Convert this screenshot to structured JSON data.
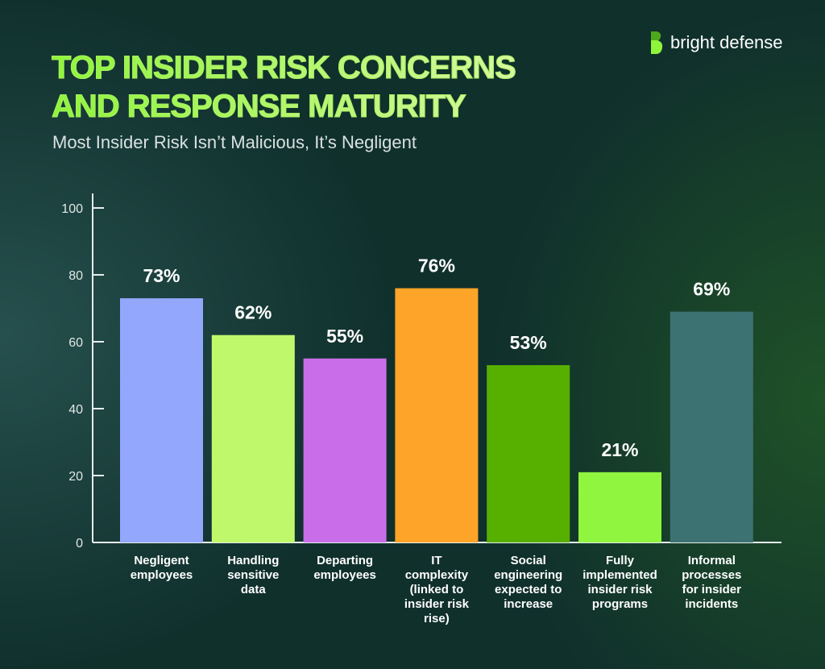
{
  "header": {
    "title_line1": "TOP INSIDER RISK CONCERNS",
    "title_line2": "AND RESPONSE MATURITY",
    "subtitle": "Most Insider Risk Isn’t Malicious, It’s Negligent"
  },
  "logo": {
    "text": "bright defense"
  },
  "chart_data": {
    "type": "bar",
    "ylim": [
      0,
      100
    ],
    "yticks": [
      "0",
      "20",
      "40",
      "60",
      "80",
      "100"
    ],
    "grid": false,
    "categories": [
      [
        "Negligent",
        "employees"
      ],
      [
        "Handling",
        "sensitive",
        "data"
      ],
      [
        "Departing",
        "employees"
      ],
      [
        "IT",
        "complexity",
        "(linked to",
        "insider risk",
        "rise)"
      ],
      [
        "Social",
        "engineering",
        "expected to",
        "increase"
      ],
      [
        "Fully",
        "implemented",
        "insider risk",
        "programs"
      ],
      [
        "Informal",
        "processes",
        "for insider",
        "incidents"
      ]
    ],
    "values": [
      73,
      62,
      55,
      76,
      53,
      21,
      69
    ],
    "labels": [
      "73%",
      "62%",
      "55%",
      "76%",
      "53%",
      "21%",
      "69%"
    ],
    "colors": [
      "#93a7fd",
      "#bff96b",
      "#c96ee8",
      "#fea428",
      "#57b000",
      "#8ff53f",
      "#3d7273"
    ]
  }
}
